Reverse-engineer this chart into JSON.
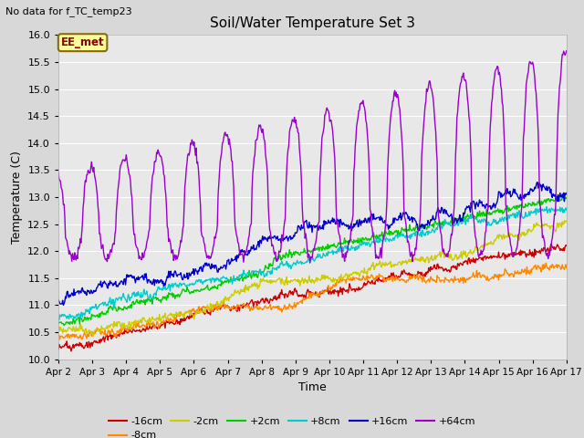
{
  "title": "Soil/Water Temperature Set 3",
  "subtitle": "No data for f_TC_temp23",
  "xlabel": "Time",
  "ylabel": "Temperature (C)",
  "ylim": [
    10.0,
    16.0
  ],
  "yticks": [
    10.0,
    10.5,
    11.0,
    11.5,
    12.0,
    12.5,
    13.0,
    13.5,
    14.0,
    14.5,
    15.0,
    15.5,
    16.0
  ],
  "x_labels": [
    "Apr 2",
    "Apr 3",
    "Apr 4",
    "Apr 5",
    "Apr 6",
    "Apr 7",
    "Apr 8",
    "Apr 9",
    "Apr 10",
    "Apr 11",
    "Apr 12",
    "Apr 13",
    "Apr 14",
    "Apr 15",
    "Apr 16",
    "Apr 17"
  ],
  "series_colors": [
    "#cc0000",
    "#ff8800",
    "#cccc00",
    "#00cc00",
    "#00cccc",
    "#0000cc",
    "#9900cc"
  ],
  "series_labels": [
    "-16cm",
    "-8cm",
    "-2cm",
    "+2cm",
    "+8cm",
    "+16cm",
    "+64cm"
  ],
  "bg_color": "#d8d8d8",
  "plot_bg_color": "#e8e8e8",
  "legend_box_color": "#ffff99",
  "legend_box_edge": "#8B6914",
  "annotation_text": "EE_met",
  "n_points": 720
}
